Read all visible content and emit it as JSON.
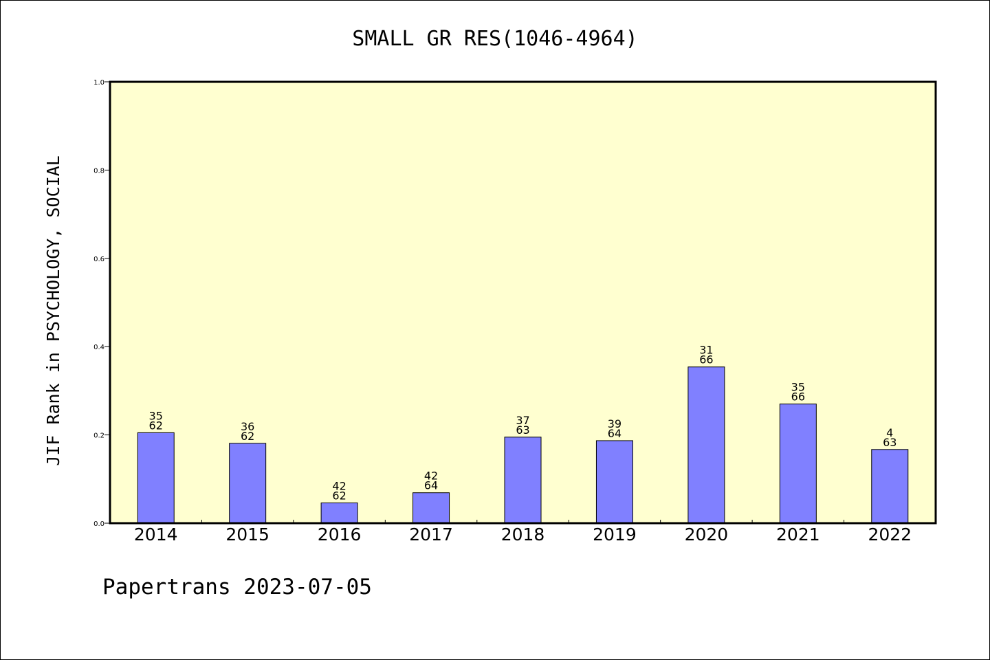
{
  "chart_data": {
    "type": "bar",
    "title": "SMALL GR RES(1046-4964)",
    "ylabel": "JIF Rank in PSYCHOLOGY, SOCIAL",
    "xlabel": "",
    "ylim": [
      0.0,
      1.0
    ],
    "yticks": [
      "0.0",
      "0.2",
      "0.4",
      "0.6",
      "0.8",
      "1.0"
    ],
    "categories": [
      "2014",
      "2015",
      "2016",
      "2017",
      "2018",
      "2019",
      "2020",
      "2021",
      "2022"
    ],
    "values": [
      0.205,
      0.181,
      0.046,
      0.069,
      0.195,
      0.187,
      0.354,
      0.27,
      0.167
    ],
    "labels_top": [
      "35",
      "36",
      "42",
      "42",
      "37",
      "39",
      "31",
      "35",
      "4"
    ],
    "labels_bottom": [
      "62",
      "62",
      "62",
      "64",
      "63",
      "64",
      "66",
      "66",
      "63"
    ],
    "grid": false,
    "colors": {
      "plot_bg": "#ffffd0",
      "bar_fill": "#8080ff",
      "bar_stroke": "#000000"
    }
  },
  "footer": "Papertrans 2023-07-05"
}
